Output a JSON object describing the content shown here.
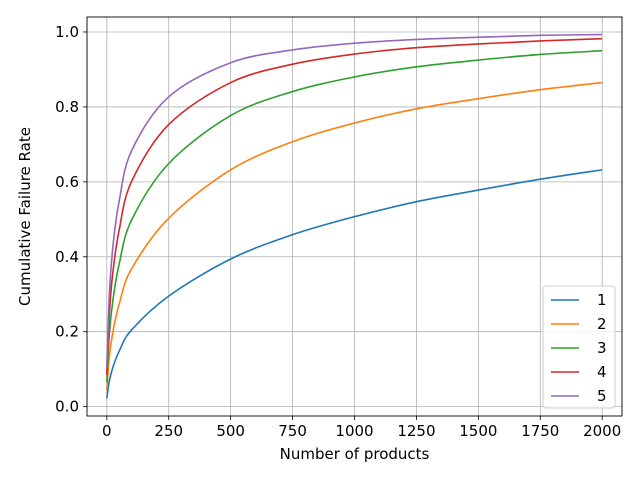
{
  "chart_data": {
    "type": "line",
    "xlabel": "Number of products",
    "ylabel": "Cumulative Failure Rate",
    "xlim": [
      -80,
      2080
    ],
    "ylim": [
      -0.025,
      1.04
    ],
    "xticks": [
      0,
      250,
      500,
      750,
      1000,
      1250,
      1500,
      1750,
      2000
    ],
    "yticks": [
      0.0,
      0.2,
      0.4,
      0.6,
      0.8,
      1.0
    ],
    "xtick_labels": [
      "0",
      "250",
      "500",
      "750",
      "1000",
      "1250",
      "1500",
      "1750",
      "2000"
    ],
    "ytick_labels": [
      "0.0",
      "0.2",
      "0.4",
      "0.6",
      "0.8",
      "1.0"
    ],
    "grid": true,
    "legend_position": "bottom-right",
    "x": [
      0,
      10,
      25,
      50,
      100,
      250,
      500,
      750,
      1000,
      1250,
      1500,
      1750,
      2000
    ],
    "series": [
      {
        "name": "1",
        "color": "#1f77b4",
        "values": [
          0.022,
          0.068,
          0.106,
          0.148,
          0.205,
          0.295,
          0.394,
          0.459,
          0.507,
          0.547,
          0.578,
          0.607,
          0.632
        ]
      },
      {
        "name": "2",
        "color": "#ff7f0e",
        "values": [
          0.044,
          0.132,
          0.201,
          0.274,
          0.368,
          0.503,
          0.632,
          0.707,
          0.757,
          0.795,
          0.822,
          0.846,
          0.865
        ]
      },
      {
        "name": "3",
        "color": "#2ca02c",
        "values": [
          0.065,
          0.191,
          0.286,
          0.381,
          0.498,
          0.649,
          0.777,
          0.841,
          0.88,
          0.907,
          0.925,
          0.94,
          0.95
        ]
      },
      {
        "name": "4",
        "color": "#d62728",
        "values": [
          0.085,
          0.246,
          0.362,
          0.472,
          0.601,
          0.753,
          0.865,
          0.914,
          0.941,
          0.958,
          0.968,
          0.976,
          0.982
        ]
      },
      {
        "name": "5",
        "color": "#9467bd",
        "values": [
          0.105,
          0.296,
          0.43,
          0.549,
          0.683,
          0.827,
          0.918,
          0.952,
          0.97,
          0.98,
          0.986,
          0.991,
          0.993
        ]
      }
    ]
  }
}
